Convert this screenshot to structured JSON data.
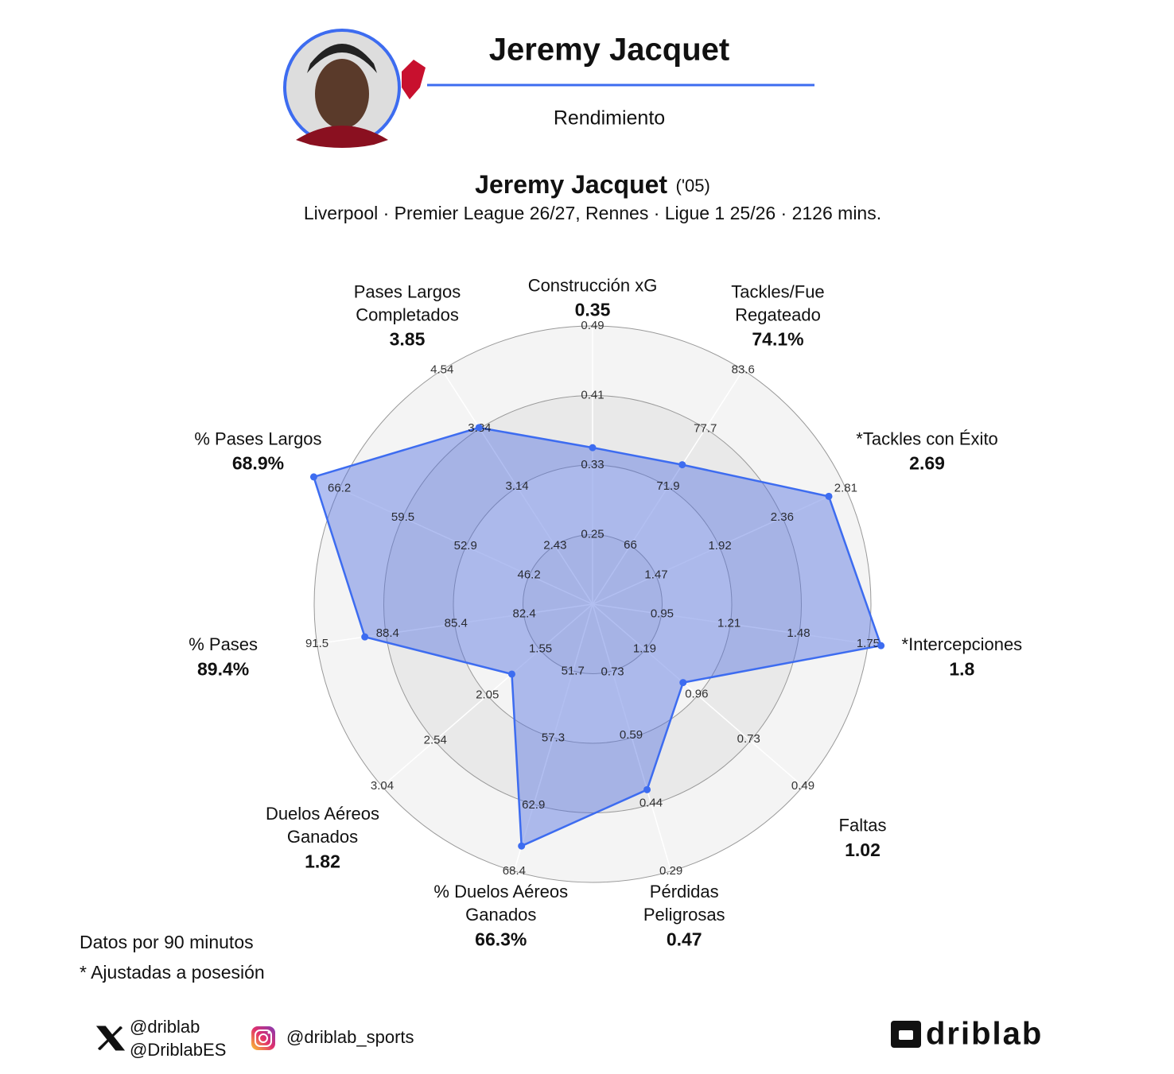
{
  "header": {
    "name": "Jeremy Jacquet",
    "subtitle": "Rendimiento"
  },
  "chart_data": {
    "type": "radar",
    "title": "Jeremy Jacquet",
    "title_note": "('05)",
    "subtitle": "Liverpool · Premier League 26/27, Rennes · Ligue 1 25/26 · 2126 mins.",
    "color": "#3d6cf0",
    "axes": [
      {
        "name": [
          "Construcción xG"
        ],
        "value": 0.35,
        "ticks": [
          0.25,
          0.33,
          0.41,
          0.49
        ],
        "rlim": [
          0.17,
          0.49
        ]
      },
      {
        "name": [
          "Tackles/Fue",
          "Regateado"
        ],
        "value": 74.1,
        "value_label": "74.1%",
        "ticks": [
          66,
          71.9,
          77.7,
          83.6
        ],
        "rlim": [
          60.1,
          83.6
        ]
      },
      {
        "name": [
          "*Tackles con Éxito"
        ],
        "value": 2.69,
        "ticks": [
          1.47,
          1.92,
          2.36,
          2.81
        ],
        "rlim": [
          1.02,
          2.81
        ]
      },
      {
        "name": [
          "*Intercepciones"
        ],
        "value": 1.8,
        "ticks": [
          0.95,
          1.21,
          1.48,
          1.75
        ],
        "rlim": [
          0.68,
          1.75
        ]
      },
      {
        "name": [
          "Faltas"
        ],
        "value": 1.02,
        "ticks": [
          1.19,
          0.96,
          0.73,
          0.49
        ],
        "rlim": [
          1.42,
          0.49
        ]
      },
      {
        "name": [
          "Pérdidas",
          "Peligrosas"
        ],
        "value": 0.47,
        "ticks": [
          0.73,
          0.59,
          0.44,
          0.29
        ],
        "rlim": [
          0.88,
          0.29
        ]
      },
      {
        "name": [
          "% Duelos Aéreos",
          "Ganados"
        ],
        "value": 66.3,
        "value_label": "66.3%",
        "ticks": [
          51.7,
          57.3,
          62.9,
          68.4
        ],
        "rlim": [
          46.1,
          68.4
        ]
      },
      {
        "name": [
          "Duelos Aéreos",
          "Ganados"
        ],
        "value": 1.82,
        "ticks": [
          1.55,
          2.05,
          2.54,
          3.04
        ],
        "rlim": [
          1.06,
          3.04
        ]
      },
      {
        "name": [
          "% Pases"
        ],
        "value": 89.4,
        "value_label": "89.4%",
        "ticks": [
          82.4,
          85.4,
          88.4,
          91.5
        ],
        "rlim": [
          79.4,
          91.5
        ]
      },
      {
        "name": [
          "% Pases Largos"
        ],
        "value": 68.9,
        "value_label": "68.9%",
        "ticks": [
          46.2,
          52.9,
          59.5,
          66.2
        ],
        "rlim": [
          39.5,
          66.2
        ]
      },
      {
        "name": [
          "Pases Largos",
          "Completados"
        ],
        "value": 3.85,
        "ticks": [
          2.43,
          3.14,
          3.84,
          4.54
        ],
        "rlim": [
          1.73,
          4.54
        ]
      }
    ]
  },
  "footer": {
    "notes": [
      "Datos por 90 minutos",
      "* Ajustadas a posesión"
    ],
    "x_handles": [
      "@driblab",
      "@DriblabES"
    ],
    "instagram": "@driblab_sports",
    "logo": "driblab"
  }
}
